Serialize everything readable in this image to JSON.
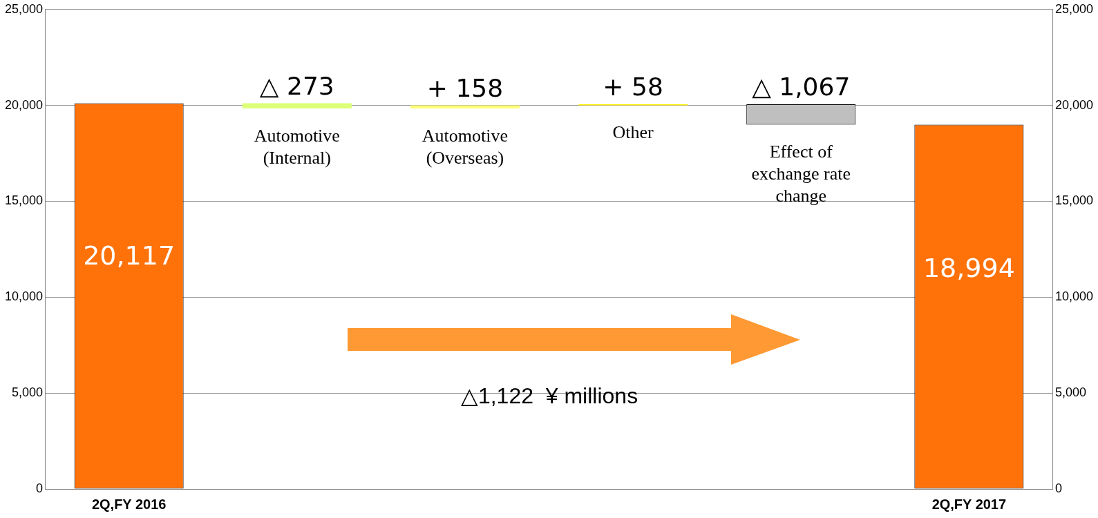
{
  "chart_data": {
    "type": "bar",
    "categories": [
      "2Q,FY 2016",
      "Automotive (Internal)",
      "Automotive (Overseas)",
      "Other",
      "Effect of exchange rate change",
      "2Q,FY 2017"
    ],
    "values": [
      20117,
      -273,
      158,
      58,
      -1067,
      18994
    ],
    "base": [
      0,
      20117,
      19844,
      20002,
      20060,
      0
    ],
    "colors": [
      "#ff7109",
      "#ddff77",
      "#ffff77",
      "#ffee00",
      "#bfbfbf",
      "#ff7109"
    ],
    "value_labels": [
      "20,117",
      "△ 273",
      "+ 158",
      "+ 58",
      "△ 1,067",
      "18,994"
    ],
    "annotations": [
      "△1,122  ¥ millions"
    ],
    "ylim": [
      0,
      25000
    ],
    "yticks": [
      0,
      {
        "value": 5000,
        "label": "5,000"
      },
      {
        "value": 10000,
        "label": "10,000"
      },
      {
        "value": 15000,
        "label": "15,000"
      },
      {
        "value": 20000,
        "label": "20,000"
      },
      {
        "value": 25000,
        "label": "25,000"
      }
    ],
    "y2lim": [
      0,
      25000
    ],
    "y2ticks": [
      0,
      {
        "value": 5000,
        "label": "5,000"
      },
      {
        "value": 10000,
        "label": "10,000"
      },
      {
        "value": 15000,
        "label": "15,000"
      },
      {
        "value": 20000,
        "label": "20,000"
      },
      {
        "value": 25000,
        "label": "25,000"
      }
    ],
    "grid": "y",
    "legend": false
  }
}
